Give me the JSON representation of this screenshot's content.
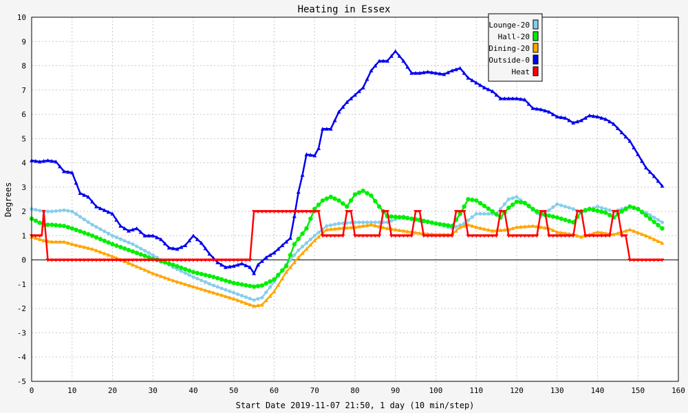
{
  "chart_data": {
    "type": "line",
    "title": "Heating in Essex",
    "xlabel": "Start Date 2019-11-07 21:50, 1 day (10 min/step)",
    "ylabel": "Degrees",
    "xlim": [
      0,
      160
    ],
    "ylim": [
      -5,
      10
    ],
    "xticks": [
      0,
      10,
      20,
      30,
      40,
      50,
      60,
      70,
      80,
      90,
      100,
      110,
      120,
      130,
      140,
      150,
      160
    ],
    "yticks": [
      -5,
      -4,
      -3,
      -2,
      -1,
      0,
      1,
      2,
      3,
      4,
      5,
      6,
      7,
      8,
      9,
      10
    ],
    "grid": true,
    "legend_position": "top-right",
    "series": [
      {
        "name": "Lounge-20",
        "color": "#87ceeb",
        "x": [
          0,
          3,
          5,
          8,
          10,
          15,
          20,
          25,
          30,
          35,
          40,
          45,
          50,
          55,
          57,
          60,
          63,
          66,
          70,
          73,
          76,
          80,
          84,
          88,
          92,
          96,
          100,
          104,
          107,
          110,
          115,
          118,
          120,
          123,
          126,
          130,
          134,
          136,
          140,
          144,
          148,
          152,
          156
        ],
        "values": [
          2.1,
          2.0,
          2.0,
          2.05,
          2.0,
          1.45,
          1.0,
          0.65,
          0.2,
          -0.3,
          -0.7,
          -1.05,
          -1.35,
          -1.65,
          -1.55,
          -0.9,
          -0.2,
          0.4,
          1.0,
          1.4,
          1.5,
          1.55,
          1.55,
          1.55,
          1.8,
          1.6,
          1.5,
          1.3,
          1.5,
          1.9,
          1.9,
          2.5,
          2.6,
          2.2,
          1.8,
          2.3,
          2.1,
          1.95,
          2.2,
          2.0,
          2.2,
          1.95,
          1.55
        ]
      },
      {
        "name": "Hall-20",
        "color": "#00ee00",
        "x": [
          0,
          3,
          5,
          8,
          10,
          15,
          20,
          25,
          30,
          35,
          40,
          45,
          50,
          55,
          57,
          60,
          63,
          65,
          68,
          70,
          72,
          74,
          76,
          78,
          80,
          82,
          84,
          86,
          88,
          92,
          96,
          100,
          104,
          106,
          108,
          110,
          114,
          116,
          118,
          120,
          122,
          124,
          126,
          130,
          134,
          136,
          138,
          142,
          144,
          146,
          148,
          150,
          153,
          156
        ],
        "values": [
          1.7,
          1.45,
          1.45,
          1.4,
          1.3,
          1.0,
          0.65,
          0.35,
          0.05,
          -0.2,
          -0.5,
          -0.7,
          -0.95,
          -1.1,
          -1.05,
          -0.8,
          -0.25,
          0.65,
          1.3,
          2.1,
          2.45,
          2.6,
          2.45,
          2.2,
          2.7,
          2.85,
          2.65,
          2.2,
          1.8,
          1.75,
          1.65,
          1.5,
          1.4,
          1.9,
          2.5,
          2.45,
          2.0,
          1.75,
          2.15,
          2.4,
          2.35,
          2.1,
          1.9,
          1.75,
          1.55,
          2.0,
          2.1,
          1.95,
          1.75,
          2.0,
          2.2,
          2.1,
          1.7,
          1.3
        ]
      },
      {
        "name": "Dining-20",
        "color": "#ffa500",
        "x": [
          0,
          3,
          5,
          8,
          10,
          15,
          20,
          25,
          30,
          35,
          40,
          45,
          50,
          55,
          57,
          60,
          63,
          66,
          70,
          73,
          76,
          80,
          84,
          88,
          92,
          96,
          100,
          104,
          106,
          108,
          110,
          114,
          118,
          120,
          124,
          128,
          130,
          134,
          136,
          140,
          144,
          148,
          152,
          156
        ],
        "values": [
          0.95,
          0.8,
          0.75,
          0.75,
          0.65,
          0.45,
          0.15,
          -0.2,
          -0.55,
          -0.85,
          -1.1,
          -1.35,
          -1.6,
          -1.9,
          -1.85,
          -1.3,
          -0.5,
          0.1,
          0.8,
          1.25,
          1.3,
          1.35,
          1.45,
          1.3,
          1.2,
          1.1,
          1.05,
          1.05,
          1.35,
          1.45,
          1.35,
          1.2,
          1.25,
          1.35,
          1.4,
          1.3,
          1.15,
          1.05,
          0.95,
          1.15,
          1.05,
          1.25,
          1.0,
          0.7
        ]
      },
      {
        "name": "Outside-0",
        "color": "#0000ee",
        "x": [
          0,
          2,
          4,
          6,
          8,
          10,
          12,
          14,
          16,
          18,
          20,
          22,
          24,
          26,
          28,
          30,
          32,
          34,
          36,
          38,
          40,
          42,
          44,
          46,
          48,
          50,
          52,
          54,
          55,
          56,
          58,
          60,
          62,
          64,
          65,
          66,
          67,
          68,
          70,
          71,
          72,
          74,
          76,
          78,
          80,
          82,
          84,
          86,
          88,
          90,
          92,
          94,
          96,
          98,
          100,
          102,
          104,
          106,
          108,
          110,
          112,
          114,
          116,
          118,
          120,
          122,
          124,
          126,
          128,
          130,
          132,
          134,
          136,
          138,
          140,
          142,
          144,
          146,
          148,
          150,
          152,
          154,
          156
        ],
        "values": [
          4.1,
          4.05,
          4.1,
          4.05,
          3.65,
          3.6,
          2.75,
          2.6,
          2.2,
          2.05,
          1.9,
          1.4,
          1.2,
          1.3,
          1.0,
          1.0,
          0.85,
          0.5,
          0.45,
          0.6,
          1.0,
          0.7,
          0.25,
          -0.1,
          -0.3,
          -0.25,
          -0.15,
          -0.3,
          -0.55,
          -0.2,
          0.1,
          0.3,
          0.6,
          0.9,
          1.8,
          2.8,
          3.5,
          4.35,
          4.3,
          4.6,
          5.4,
          5.4,
          6.1,
          6.5,
          6.8,
          7.1,
          7.8,
          8.2,
          8.2,
          8.6,
          8.2,
          7.7,
          7.7,
          7.75,
          7.7,
          7.65,
          7.8,
          7.9,
          7.5,
          7.3,
          7.1,
          6.95,
          6.65,
          6.65,
          6.65,
          6.6,
          6.25,
          6.2,
          6.1,
          5.9,
          5.85,
          5.65,
          5.75,
          5.95,
          5.9,
          5.8,
          5.6,
          5.25,
          4.9,
          4.35,
          3.8,
          3.45,
          3.05
        ]
      },
      {
        "name": "Heat",
        "color": "#ff0000",
        "x": [
          0,
          2.5,
          3,
          3.5,
          4,
          54,
          55,
          71,
          72,
          77,
          78,
          79,
          80,
          86,
          87,
          88,
          89,
          94,
          95,
          96,
          97,
          104,
          105,
          107,
          108,
          115,
          116,
          117,
          118,
          125,
          126,
          127,
          128,
          134,
          135,
          136,
          137,
          143,
          144,
          145,
          146,
          147,
          148,
          156
        ],
        "values": [
          1,
          1,
          2,
          1,
          0,
          0,
          2,
          2,
          1,
          1,
          2,
          2,
          1,
          1,
          2,
          2,
          1,
          1,
          2,
          2,
          1,
          1,
          2,
          2,
          1,
          1,
          2,
          2,
          1,
          1,
          2,
          2,
          1,
          1,
          2,
          2,
          1,
          1,
          2,
          2,
          1,
          1,
          0,
          0
        ]
      }
    ]
  }
}
